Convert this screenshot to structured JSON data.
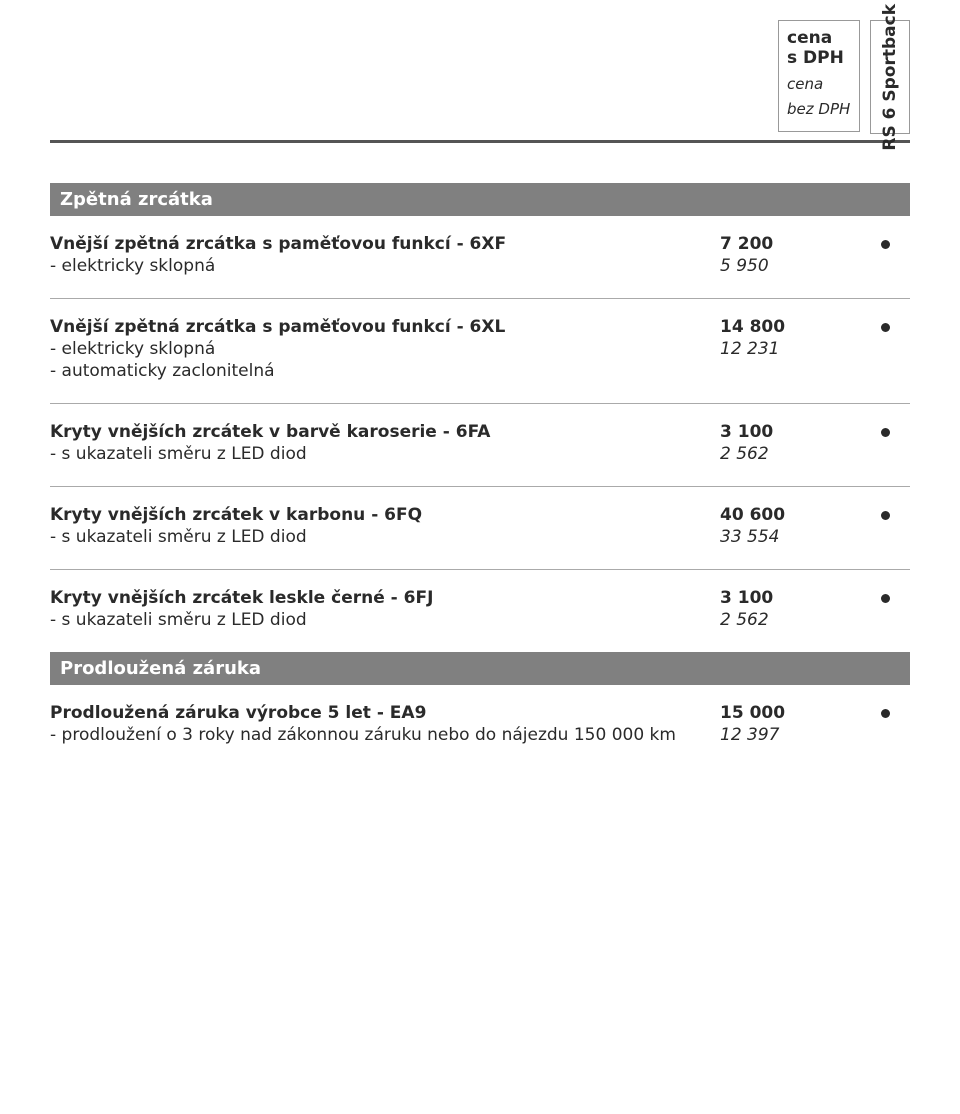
{
  "header": {
    "price_with_vat_l1": "cena",
    "price_with_vat_l2": "s DPH",
    "price_no_vat_l1": "cena",
    "price_no_vat_l2": "bez DPH",
    "model": "RS 6 Sportback"
  },
  "sections": [
    {
      "title": "Zpětná zrcátka",
      "groups": [
        {
          "title": "Vnější zpětná zrcátka s paměťovou funkcí - 6XF",
          "price": "7 200",
          "price_nv": "5 950",
          "dot": true,
          "subs": [
            {
              "label": "- elektricky sklopná"
            }
          ]
        },
        {
          "title": "Vnější zpětná zrcátka s paměťovou funkcí - 6XL",
          "price": "14 800",
          "price_nv": "12 231",
          "dot": true,
          "subs": [
            {
              "label": "- elektricky sklopná"
            },
            {
              "label": "- automaticky zaclonitelná"
            }
          ]
        },
        {
          "title": "Kryty vnějších zrcátek v barvě karoserie - 6FA",
          "price": "3 100",
          "price_nv": "2 562",
          "dot": true,
          "subs": [
            {
              "label": "- s ukazateli směru z LED diod"
            }
          ]
        },
        {
          "title": "Kryty vnějších zrcátek v karbonu - 6FQ",
          "price": "40 600",
          "price_nv": "33 554",
          "dot": true,
          "subs": [
            {
              "label": "- s ukazateli směru z LED diod"
            }
          ]
        },
        {
          "title": "Kryty vnějších zrcátek leskle černé  - 6FJ",
          "price": "3 100",
          "price_nv": "2 562",
          "dot": true,
          "subs": [
            {
              "label": "- s ukazateli směru z LED diod"
            }
          ]
        }
      ]
    },
    {
      "title": "Prodloužená záruka",
      "groups": [
        {
          "title": "Prodloužená záruka výrobce 5 let    - EA9",
          "price": "15 000",
          "price_nv": "12 397",
          "dot": true,
          "subs": [
            {
              "label": "- prodloužení o 3 roky nad zákonnou záruku nebo do nájezdu 150 000 km"
            }
          ]
        }
      ]
    }
  ]
}
